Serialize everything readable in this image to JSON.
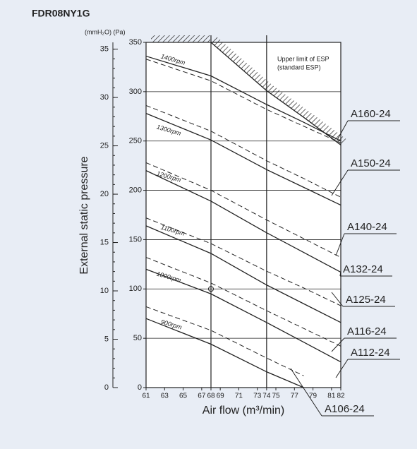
{
  "chart_data": {
    "type": "line",
    "title": "FDR08NY1G",
    "units_label": "(mmH₂O) (Pa)",
    "ylabel": "External static pressure",
    "xlabel": "Air flow (m³/min)",
    "x": [
      61,
      68,
      74,
      78,
      82
    ],
    "xlim": [
      61,
      82
    ],
    "xticks": [
      61,
      63,
      65,
      67,
      68,
      69,
      71,
      73,
      74,
      75,
      77,
      79,
      81,
      82
    ],
    "ylim": [
      0,
      350
    ],
    "yticks": [
      0,
      50,
      100,
      150,
      200,
      250,
      300,
      350
    ],
    "y2lim": [
      0,
      35.7
    ],
    "y2ticks": [
      0,
      5,
      10,
      15,
      20,
      25,
      30,
      35
    ],
    "y2minor_step": 1,
    "grid": true,
    "vlines": [
      68,
      74
    ],
    "color": "#222222",
    "series": [
      {
        "name": "1400rpm",
        "dash": false,
        "values": [
          336,
          316,
          287,
          269,
          250
        ]
      },
      {
        "dash": true,
        "values": [
          333,
          311,
          282,
          265,
          248
        ]
      },
      {
        "dash": true,
        "values": [
          286,
          260,
          230,
          212,
          193
        ]
      },
      {
        "name": "1300rpm",
        "dash": false,
        "values": [
          278,
          251,
          221,
          203,
          185
        ]
      },
      {
        "dash": true,
        "values": [
          228,
          200,
          170,
          151,
          132
        ]
      },
      {
        "name": "1200rpm",
        "dash": false,
        "values": [
          220,
          189,
          157,
          137,
          117
        ]
      },
      {
        "dash": true,
        "values": [
          172,
          146,
          118,
          101,
          83
        ]
      },
      {
        "name": "1100rpm",
        "dash": false,
        "values": [
          164,
          136,
          104,
          85,
          66
        ]
      },
      {
        "dash": true,
        "values": [
          132,
          106,
          78,
          60,
          42
        ]
      },
      {
        "name": "1000rpm",
        "dash": false,
        "values": [
          120,
          95,
          66,
          46,
          26
        ]
      },
      {
        "dash": true,
        "values": [
          82,
          58,
          30,
          12,
          null
        ]
      },
      {
        "name": "900rpm",
        "dash": false,
        "values": [
          70,
          44,
          16,
          0,
          null
        ]
      }
    ],
    "limit": {
      "label": [
        "Upper limit of ESP",
        "(standard ESP)"
      ],
      "values": [
        null,
        350,
        301,
        274,
        246
      ]
    },
    "marker": {
      "x": 68,
      "y": 100
    },
    "annotations": [
      "A160-24",
      "A150-24",
      "A140-24",
      "A132-24",
      "A125-24",
      "A116-24",
      "A112-24",
      "A106-24"
    ]
  }
}
